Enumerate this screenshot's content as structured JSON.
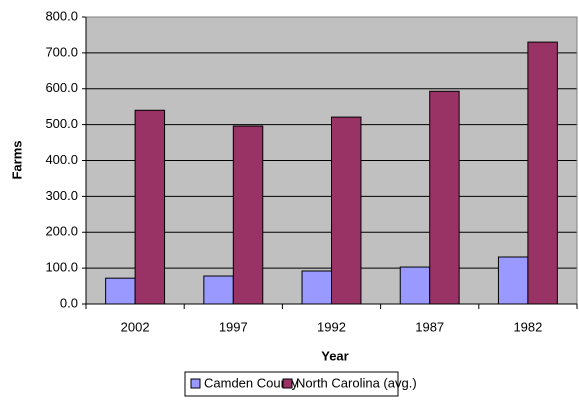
{
  "chart_data": {
    "type": "bar",
    "x_label": "Year",
    "y_label": "Farms",
    "categories": [
      "2002",
      "1997",
      "1992",
      "1987",
      "1982"
    ],
    "series": [
      {
        "name": "Camden County",
        "color": "#9999ff",
        "values": [
          72,
          78,
          92,
          103,
          131
        ]
      },
      {
        "name": "North Carolina (avg.)",
        "color": "#993366",
        "values": [
          540,
          496,
          521,
          593,
          730
        ]
      }
    ],
    "ylim": [
      0,
      800
    ],
    "yticks": [
      {
        "value": 0,
        "label": "0.0"
      },
      {
        "value": 100,
        "label": "100.0"
      },
      {
        "value": 200,
        "label": "200.0"
      },
      {
        "value": 300,
        "label": "300.0"
      },
      {
        "value": 400,
        "label": "400.0"
      },
      {
        "value": 500,
        "label": "500.0"
      },
      {
        "value": 600,
        "label": "600.0"
      },
      {
        "value": 700,
        "label": "700.0"
      },
      {
        "value": 800,
        "label": "800.0"
      }
    ],
    "grid": true,
    "legend": "bottom"
  }
}
